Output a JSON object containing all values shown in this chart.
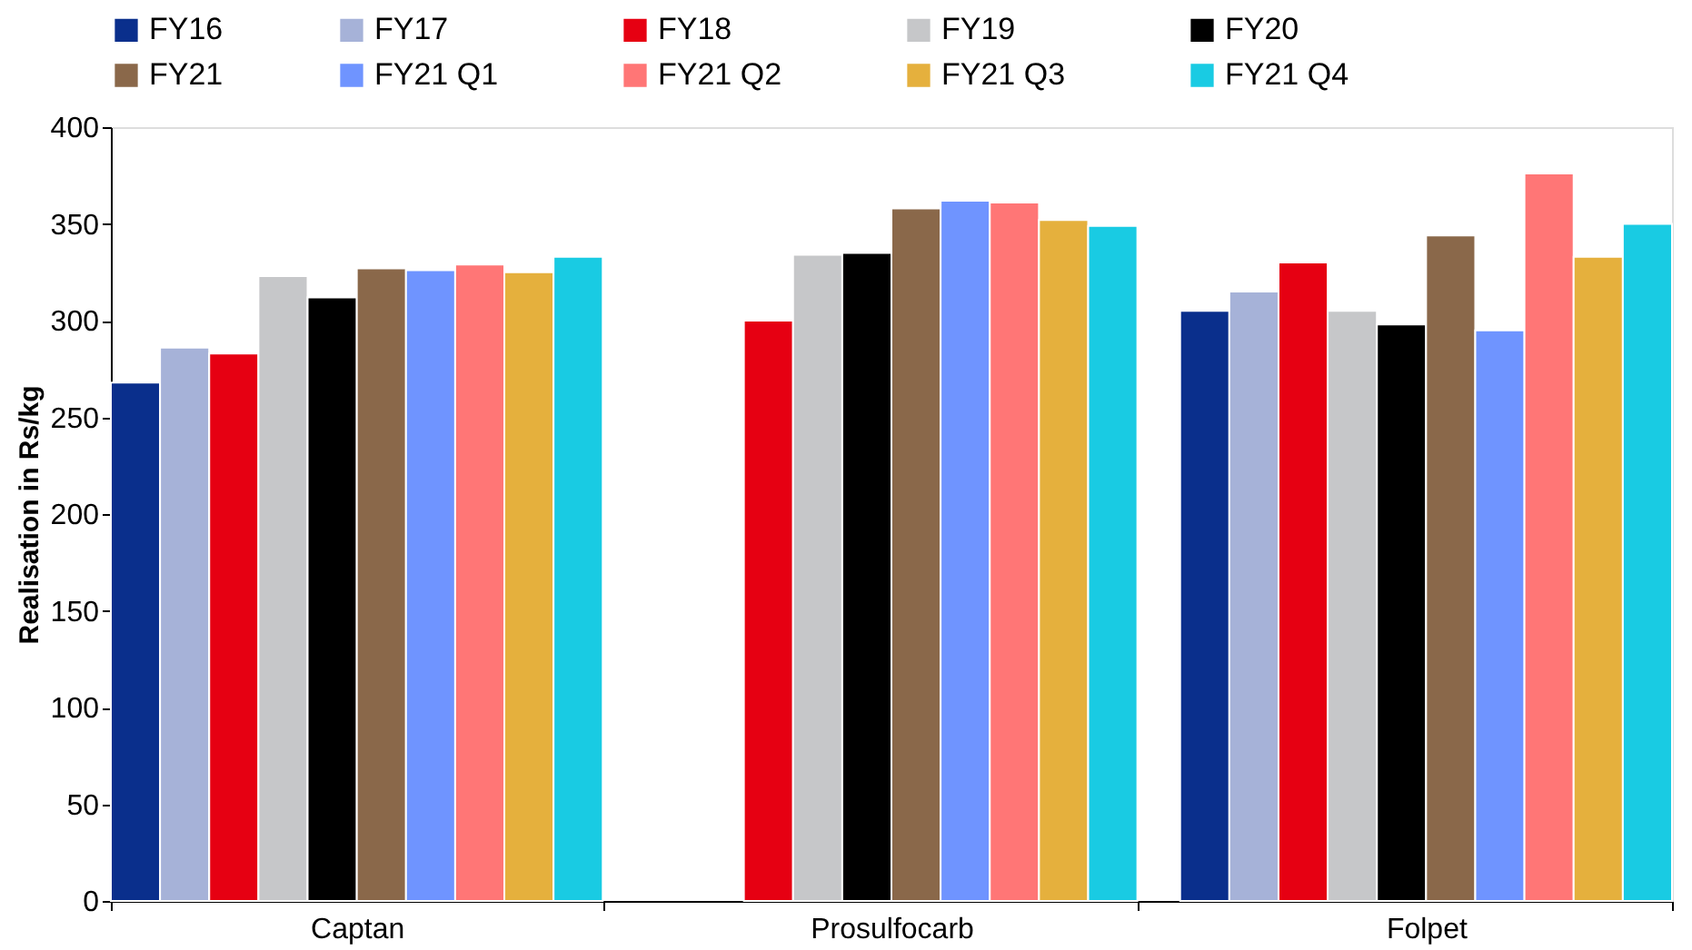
{
  "chart_data": {
    "type": "bar",
    "ylabel": "Realisation in Rs/kg",
    "categories": [
      "Captan",
      "Prosulfocarb",
      "Folpet"
    ],
    "series": [
      {
        "name": "FY16",
        "color": "#0a2f8c",
        "values": [
          268,
          null,
          305
        ]
      },
      {
        "name": "FY17",
        "color": "#a6b2d8",
        "values": [
          286,
          null,
          315
        ]
      },
      {
        "name": "FY18",
        "color": "#e60012",
        "values": [
          283,
          300,
          330
        ]
      },
      {
        "name": "FY19",
        "color": "#c6c7c9",
        "values": [
          323,
          334,
          305
        ]
      },
      {
        "name": "FY20",
        "color": "#000000",
        "values": [
          312,
          335,
          298
        ]
      },
      {
        "name": "FY21",
        "color": "#8a684a",
        "values": [
          327,
          358,
          344
        ]
      },
      {
        "name": "FY21  Q1",
        "color": "#6f94ff",
        "values": [
          326,
          362,
          295
        ]
      },
      {
        "name": "FY21  Q2",
        "color": "#ff7676",
        "values": [
          329,
          361,
          376
        ]
      },
      {
        "name": "FY21  Q3",
        "color": "#e5b03d",
        "values": [
          325,
          352,
          333
        ]
      },
      {
        "name": "FY21  Q4",
        "color": "#19cbe3",
        "values": [
          333,
          349,
          350
        ]
      }
    ],
    "ylim": [
      0,
      400
    ],
    "yticks": [
      0,
      50,
      100,
      150,
      200,
      250,
      300,
      350,
      400
    ],
    "grid": false,
    "legend": "top"
  }
}
